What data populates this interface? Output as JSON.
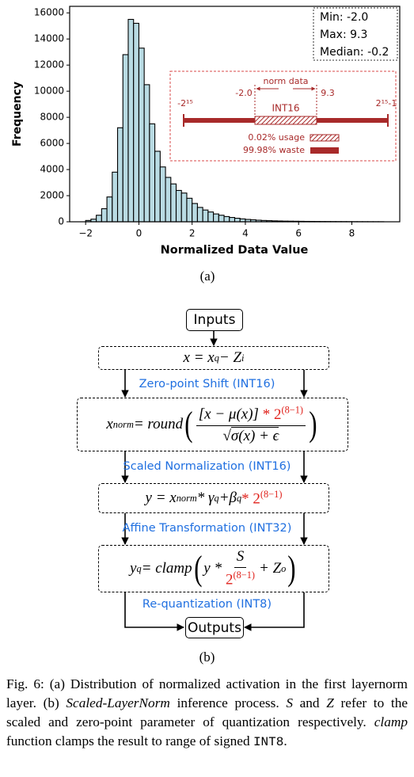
{
  "chart_data": {
    "type": "histogram",
    "xlabel": "Normalized Data Value",
    "ylabel": "Frequency",
    "color": "#b9dbe3",
    "bins": [
      -2.0,
      -1.8,
      -1.6,
      -1.4,
      -1.2,
      -1.0,
      -0.8,
      -0.6,
      -0.4,
      -0.2,
      0.0,
      0.2,
      0.4,
      0.6,
      0.8,
      1.0,
      1.2,
      1.4,
      1.6,
      1.8,
      2.0,
      2.2,
      2.4,
      2.6,
      2.8,
      3.0,
      3.2,
      3.4,
      3.6,
      3.8,
      4.0,
      4.2,
      4.4,
      4.6,
      4.8,
      5.0,
      5.2,
      5.4,
      5.6,
      5.8,
      6.0,
      6.2,
      6.4,
      6.6,
      6.8,
      7.0,
      7.2,
      7.4,
      7.6,
      7.8,
      8.0,
      8.2,
      8.4,
      8.6,
      8.8,
      9.0,
      9.2
    ],
    "values": [
      100,
      200,
      500,
      1000,
      1900,
      3800,
      7200,
      12800,
      15500,
      15200,
      13300,
      10500,
      7500,
      5400,
      4200,
      3400,
      2900,
      2400,
      2200,
      1800,
      1400,
      1100,
      900,
      750,
      600,
      500,
      400,
      330,
      270,
      220,
      180,
      150,
      120,
      100,
      85,
      70,
      60,
      50,
      45,
      40,
      35,
      30,
      28,
      25,
      22,
      20,
      18,
      16,
      14,
      12,
      10,
      9,
      8,
      7,
      6,
      5
    ],
    "xlim": [
      -2.6,
      9.8
    ],
    "ylim": [
      0,
      16500
    ],
    "xticks": [
      {
        "value": -2,
        "label": "−2"
      },
      0,
      2,
      4,
      6,
      8
    ],
    "yticks": [
      0,
      2000,
      4000,
      6000,
      8000,
      10000,
      12000,
      14000,
      16000
    ],
    "stats": [
      "Min: -2.0",
      "Max: 9.3",
      "Median: -0.2"
    ],
    "inset": {
      "range_low": "-2¹⁵",
      "range_high": "2¹⁵-1",
      "norm_label": "norm data",
      "norm_min": "-2.0",
      "norm_max": "9.3",
      "int_label": "INT16",
      "usage": "0.02% usage",
      "waste": "99.98% waste"
    },
    "caption": "(a)"
  },
  "diagram": {
    "inputs": "Inputs",
    "outputs": "Outputs",
    "formulas": [
      [
        "x = x",
        "q",
        " − Z",
        "i"
      ],
      [
        "x",
        "norm",
        " = round",
        "[x − μ(x)] ",
        "* 2",
        "(8−1)",
        "√",
        "σ(x) + ϵ"
      ],
      [
        "y = x",
        "norm",
        " * γ",
        "q",
        " +β",
        "q",
        " * 2",
        "(8−1)"
      ],
      [
        "y",
        "q",
        " = clamp",
        "y * ",
        "S",
        "2",
        "(8−1)",
        " + Z",
        "o"
      ]
    ],
    "steps": [
      "Zero-point Shift (INT16)",
      "Scaled Normalization (INT16)",
      "Affine Transformation (INT32)",
      "Re-quantization (INT8)"
    ],
    "caption": "(b)"
  },
  "figure_caption": [
    "Fig. 6: (a) Distribution of normalized activation in the first layernorm layer. (b) ",
    "Scaled-LayerNorm",
    " inference process. ",
    "S",
    " and ",
    "Z",
    " refer to the scaled and zero-point parameter of quantization respectively. ",
    "clamp",
    " function clamps the result to range of signed ",
    "INT8",
    "."
  ]
}
